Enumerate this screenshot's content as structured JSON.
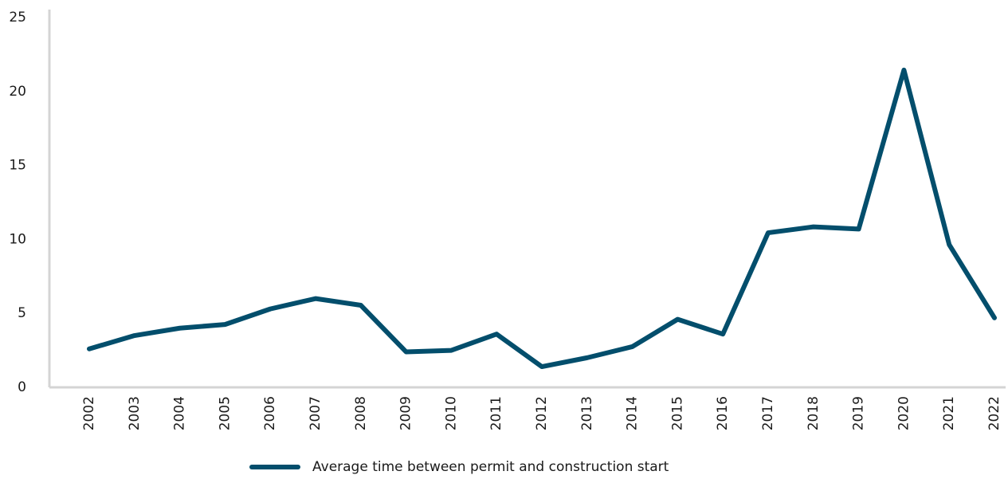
{
  "chart_data": {
    "type": "line",
    "categories": [
      "2002",
      "2003",
      "2004",
      "2005",
      "2006",
      "2007",
      "2008",
      "2009",
      "2010",
      "2011",
      "2012",
      "2013",
      "2014",
      "2015",
      "2016",
      "2017",
      "2018",
      "2019",
      "2020",
      "2021",
      "2022"
    ],
    "series": [
      {
        "name": "Average time between permit and construction start",
        "color": "#034e6c",
        "values": [
          2.6,
          3.5,
          4.0,
          4.25,
          5.3,
          6.0,
          5.55,
          2.4,
          2.5,
          3.6,
          1.4,
          2.0,
          2.75,
          4.6,
          3.6,
          10.45,
          10.85,
          10.7,
          21.45,
          9.65,
          4.7
        ]
      }
    ],
    "ylim": [
      0,
      25
    ],
    "yticks": [
      0,
      5,
      10,
      15,
      20,
      25
    ],
    "grid": false,
    "legend": "bottom"
  }
}
